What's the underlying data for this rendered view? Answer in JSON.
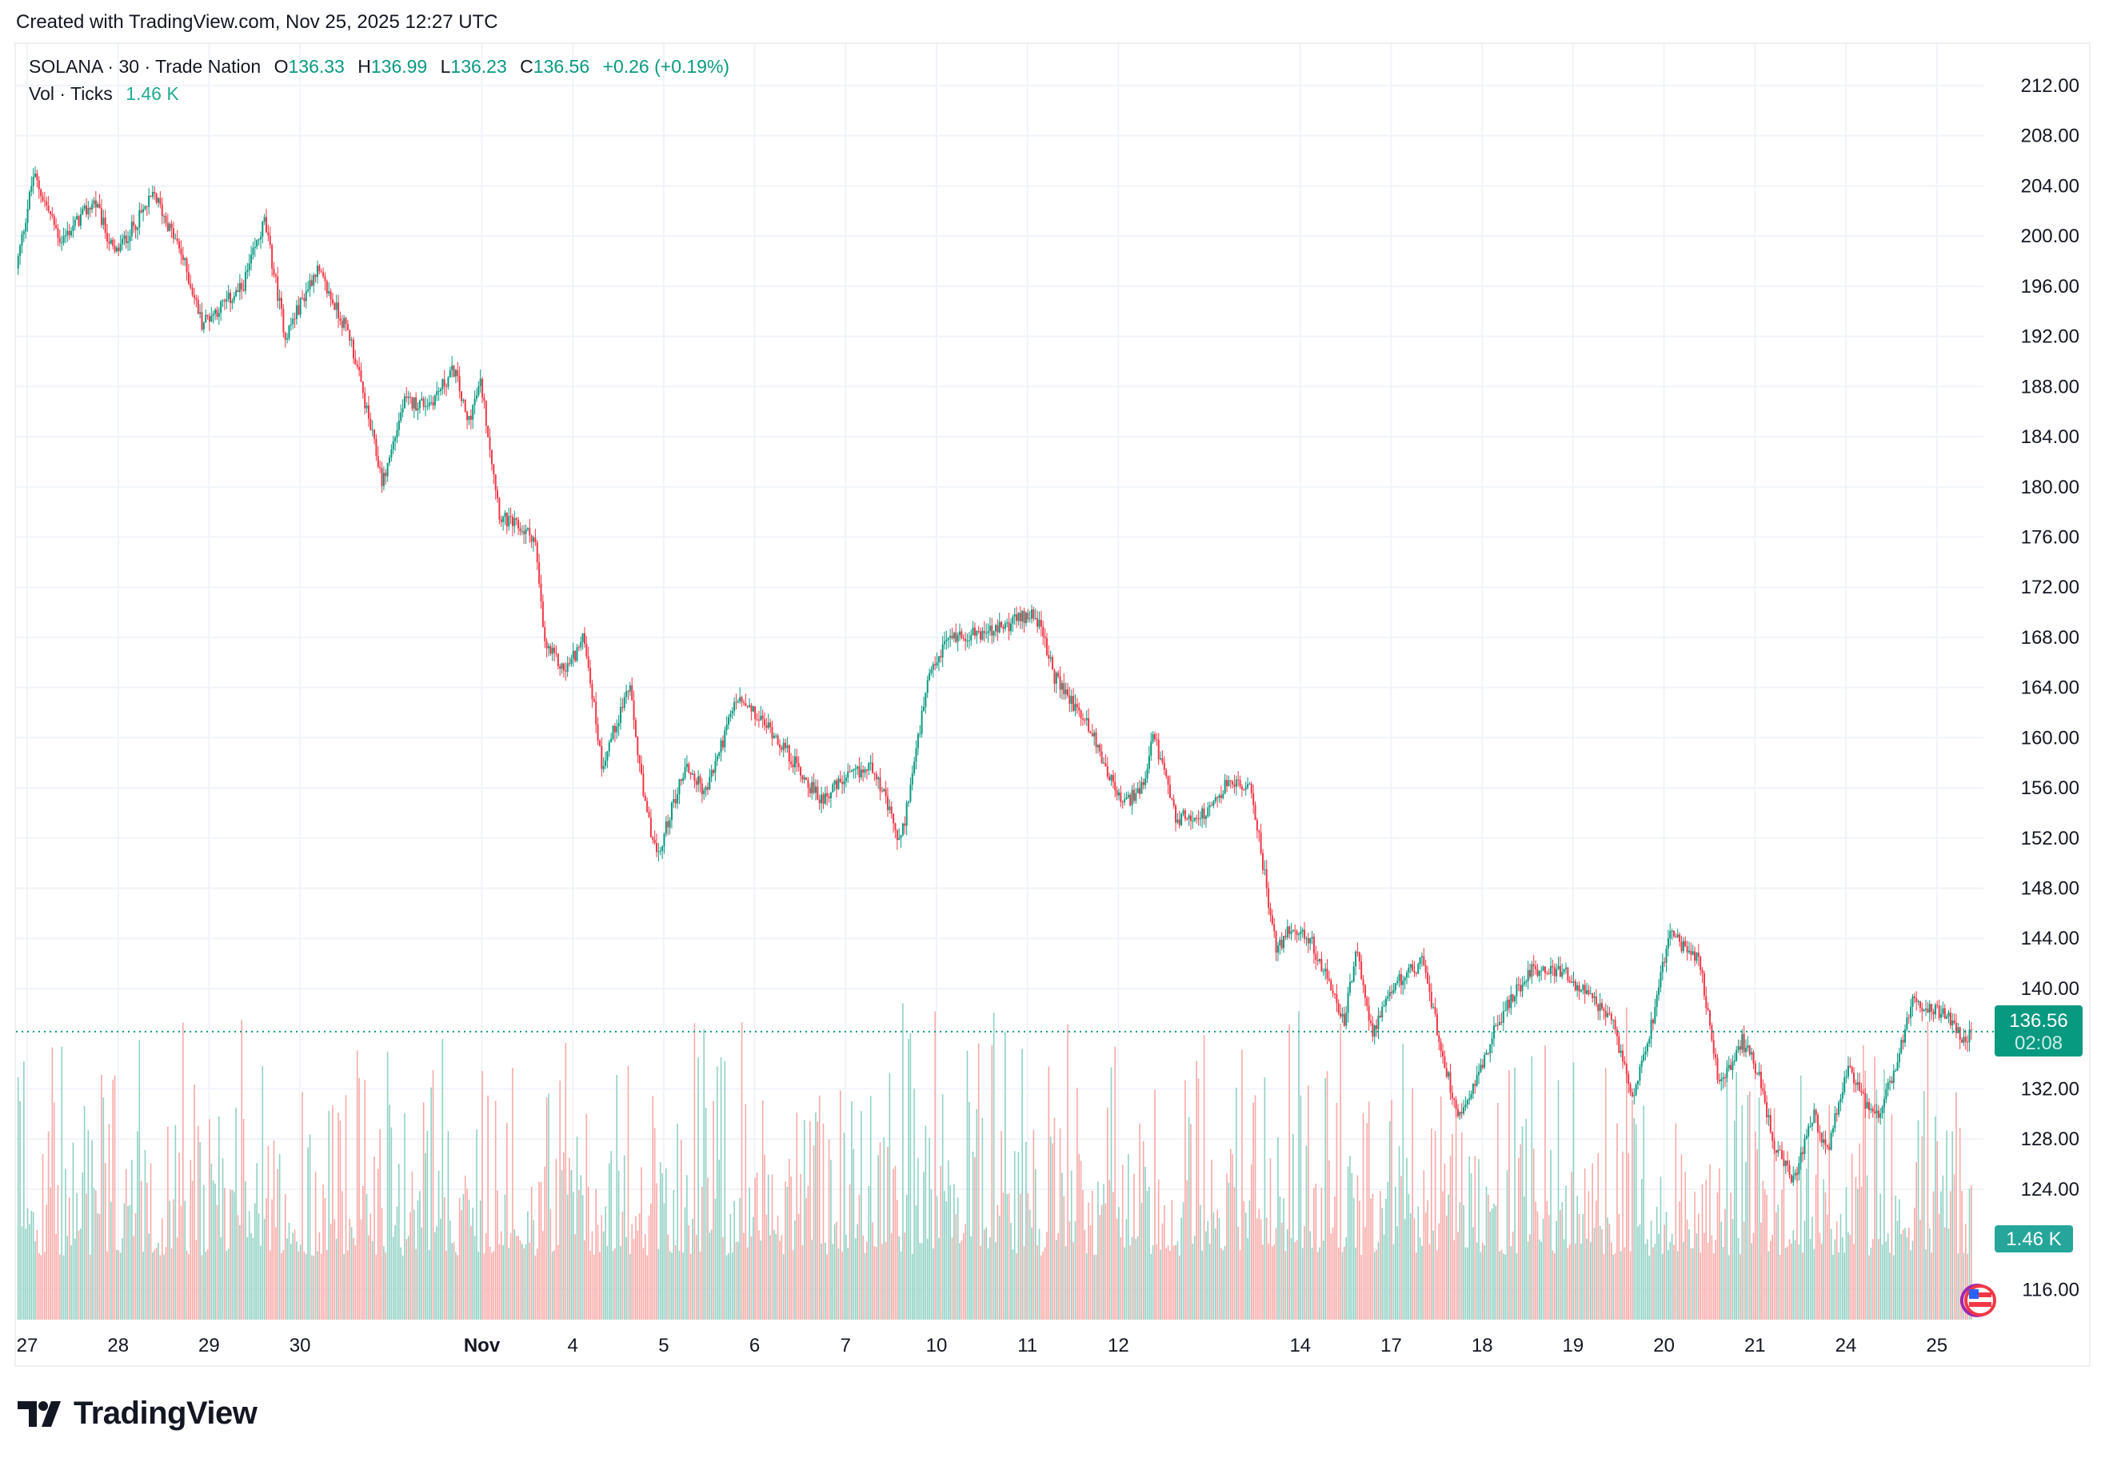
{
  "credit": "Created with TradingView.com, Nov 25, 2025 12:27 UTC",
  "legend": {
    "symbol": "SOLANA · 30 · Trade Nation",
    "open_label": "O",
    "open": "136.33",
    "high_label": "H",
    "high": "136.99",
    "low_label": "L",
    "low": "136.23",
    "close_label": "C",
    "close": "136.56",
    "change": "+0.26 (+0.19%)",
    "volume_label": "Vol · Ticks",
    "volume": "1.46 K"
  },
  "price_badge": {
    "price": "136.56",
    "countdown": "02:08"
  },
  "volume_badge": "1.46 K",
  "logo": "TradingView",
  "colors": {
    "up": "#089981",
    "down": "#f23645",
    "volume_up": "#8fd1c4",
    "volume_down": "#f7a9a7",
    "grid": "#f0f3fa"
  },
  "chart_data": {
    "type": "candlestick",
    "interval": "30",
    "y_ticks": [
      "212.00",
      "208.00",
      "204.00",
      "200.00",
      "196.00",
      "192.00",
      "188.00",
      "184.00",
      "180.00",
      "176.00",
      "172.00",
      "168.00",
      "164.00",
      "160.00",
      "156.00",
      "152.00",
      "148.00",
      "144.00",
      "140.00",
      "132.00",
      "128.00",
      "124.00",
      "116.00"
    ],
    "ylim": [
      113.5,
      214
    ],
    "x_ticks": [
      {
        "label": "27",
        "day": 0
      },
      {
        "label": "28",
        "day": 1
      },
      {
        "label": "29",
        "day": 2
      },
      {
        "label": "30",
        "day": 3
      },
      {
        "label": "Nov",
        "day": 5,
        "bold": true
      },
      {
        "label": "4",
        "day": 6
      },
      {
        "label": "5",
        "day": 7
      },
      {
        "label": "6",
        "day": 8
      },
      {
        "label": "7",
        "day": 9
      },
      {
        "label": "10",
        "day": 10
      },
      {
        "label": "11",
        "day": 11
      },
      {
        "label": "12",
        "day": 12
      },
      {
        "label": "14",
        "day": 14
      },
      {
        "label": "17",
        "day": 15
      },
      {
        "label": "18",
        "day": 16
      },
      {
        "label": "19",
        "day": 17
      },
      {
        "label": "20",
        "day": 18
      },
      {
        "label": "21",
        "day": 19
      },
      {
        "label": "24",
        "day": 20
      },
      {
        "label": "25",
        "day": 21
      }
    ],
    "last_price": 136.56,
    "price_path": [
      [
        -0.12,
        197.4
      ],
      [
        0.07,
        204.9
      ],
      [
        0.37,
        199.6
      ],
      [
        0.74,
        202.8
      ],
      [
        0.96,
        198.5
      ],
      [
        1.4,
        203.3
      ],
      [
        1.7,
        198.5
      ],
      [
        1.92,
        193.1
      ],
      [
        2.36,
        195.8
      ],
      [
        2.61,
        201.2
      ],
      [
        2.84,
        192.0
      ],
      [
        3.18,
        197.4
      ],
      [
        3.55,
        192.0
      ],
      [
        3.91,
        180.3
      ],
      [
        4.14,
        186.7
      ],
      [
        4.43,
        186.7
      ],
      [
        4.7,
        189.4
      ],
      [
        4.84,
        185.1
      ],
      [
        4.99,
        188.3
      ],
      [
        5.2,
        177.6
      ],
      [
        5.58,
        176.0
      ],
      [
        5.69,
        167.4
      ],
      [
        5.91,
        165.3
      ],
      [
        6.13,
        168.0
      ],
      [
        6.32,
        157.8
      ],
      [
        6.62,
        164.2
      ],
      [
        6.79,
        154.6
      ],
      [
        6.94,
        150.3
      ],
      [
        7.05,
        153.5
      ],
      [
        7.24,
        157.8
      ],
      [
        7.46,
        155.6
      ],
      [
        7.8,
        163.1
      ],
      [
        8.2,
        160.5
      ],
      [
        8.71,
        155.1
      ],
      [
        9.01,
        156.7
      ],
      [
        9.31,
        157.8
      ],
      [
        9.6,
        151.4
      ],
      [
        9.9,
        164.2
      ],
      [
        10.12,
        168.0
      ],
      [
        10.64,
        168.5
      ],
      [
        11.08,
        170.1
      ],
      [
        11.3,
        164.8
      ],
      [
        11.67,
        161.0
      ],
      [
        12.04,
        154.6
      ],
      [
        12.3,
        156.2
      ],
      [
        12.38,
        160.5
      ],
      [
        12.63,
        153.5
      ],
      [
        13.0,
        154.0
      ],
      [
        13.22,
        156.7
      ],
      [
        13.47,
        155.6
      ],
      [
        13.74,
        142.8
      ],
      [
        13.88,
        144.9
      ],
      [
        14.11,
        143.9
      ],
      [
        14.48,
        137.4
      ],
      [
        14.62,
        142.8
      ],
      [
        14.8,
        136.4
      ],
      [
        15.07,
        140.6
      ],
      [
        15.36,
        142.2
      ],
      [
        15.51,
        136.4
      ],
      [
        15.73,
        129.9
      ],
      [
        15.95,
        133.1
      ],
      [
        16.18,
        137.4
      ],
      [
        16.54,
        141.7
      ],
      [
        16.91,
        141.2
      ],
      [
        17.13,
        139.6
      ],
      [
        17.43,
        137.4
      ],
      [
        17.65,
        131.5
      ],
      [
        17.87,
        137.4
      ],
      [
        18.05,
        144.4
      ],
      [
        18.39,
        142.2
      ],
      [
        18.61,
        132.1
      ],
      [
        18.86,
        135.8
      ],
      [
        19.05,
        133.1
      ],
      [
        19.2,
        127.8
      ],
      [
        19.42,
        124.6
      ],
      [
        19.65,
        129.9
      ],
      [
        19.79,
        126.6
      ],
      [
        20.01,
        133.7
      ],
      [
        20.31,
        129.4
      ],
      [
        20.53,
        133.1
      ],
      [
        20.74,
        139.0
      ],
      [
        21.12,
        138.0
      ],
      [
        21.3,
        135.8
      ],
      [
        21.39,
        136.56
      ]
    ]
  }
}
